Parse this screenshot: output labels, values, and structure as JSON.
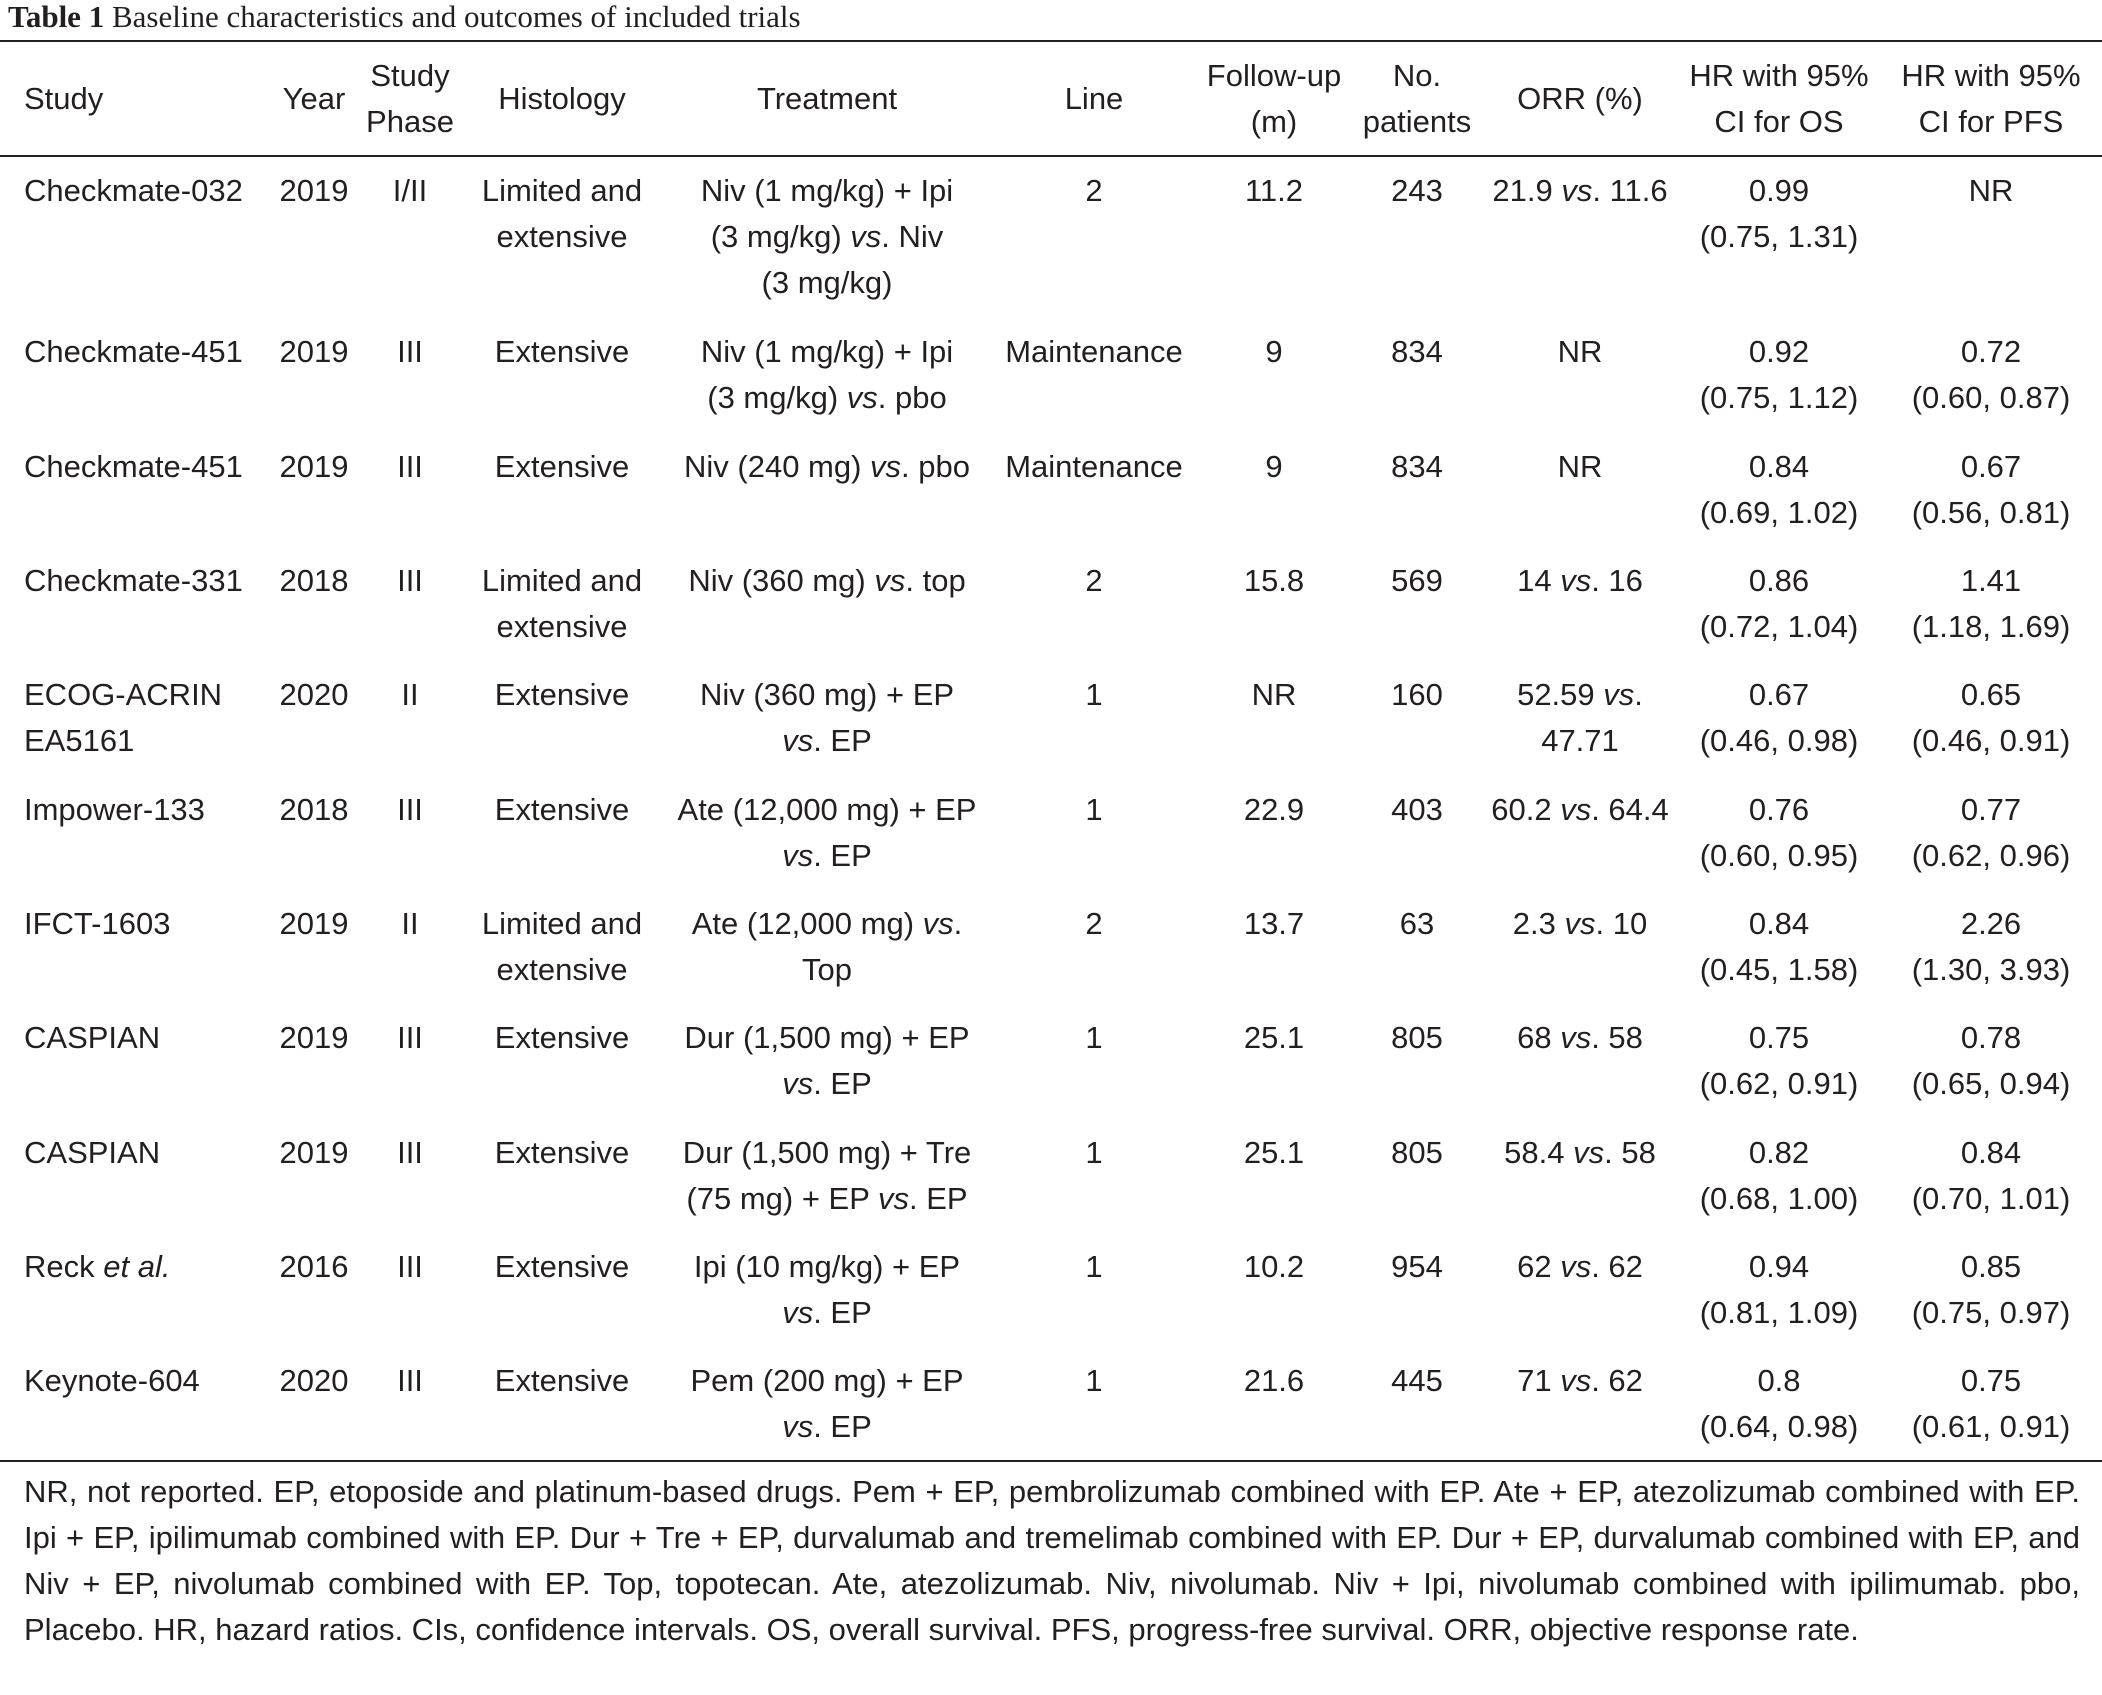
{
  "caption": {
    "number": "Table 1",
    "title": "Baseline characteristics and outcomes of included trials"
  },
  "headers": [
    [
      "Study"
    ],
    [
      "Year"
    ],
    [
      "Study",
      "Phase"
    ],
    [
      "Histology"
    ],
    [
      "Treatment"
    ],
    [
      "Line"
    ],
    [
      "Follow-up",
      "(m)"
    ],
    [
      "No.",
      "patients"
    ],
    [
      "ORR (%)"
    ],
    [
      "HR with 95%",
      "CI for OS"
    ],
    [
      "HR with 95%",
      "CI for PFS"
    ]
  ],
  "rows": [
    [
      [
        [
          "Checkmate-032"
        ]
      ],
      [
        [
          "2019"
        ]
      ],
      [
        [
          "I/II"
        ]
      ],
      [
        [
          "Limited and"
        ],
        [
          "extensive"
        ]
      ],
      [
        [
          "Niv (1 mg/kg) + Ipi"
        ],
        [
          "(3 mg/kg) ",
          {
            "i": "vs"
          },
          ". Niv"
        ],
        [
          "(3 mg/kg)"
        ]
      ],
      [
        [
          "2"
        ]
      ],
      [
        [
          "11.2"
        ]
      ],
      [
        [
          "243"
        ]
      ],
      [
        [
          "21.9 ",
          {
            "i": "vs"
          },
          ". 11.6"
        ]
      ],
      [
        [
          "0.99"
        ],
        [
          "(0.75, 1.31)"
        ]
      ],
      [
        [
          "NR"
        ]
      ]
    ],
    [
      [
        [
          "Checkmate-451"
        ]
      ],
      [
        [
          "2019"
        ]
      ],
      [
        [
          "III"
        ]
      ],
      [
        [
          "Extensive"
        ]
      ],
      [
        [
          "Niv (1 mg/kg) + Ipi"
        ],
        [
          "(3 mg/kg) ",
          {
            "i": "vs"
          },
          ". pbo"
        ]
      ],
      [
        [
          "Maintenance"
        ]
      ],
      [
        [
          "9"
        ]
      ],
      [
        [
          "834"
        ]
      ],
      [
        [
          "NR"
        ]
      ],
      [
        [
          "0.92"
        ],
        [
          "(0.75, 1.12)"
        ]
      ],
      [
        [
          "0.72"
        ],
        [
          "(0.60, 0.87)"
        ]
      ]
    ],
    [
      [
        [
          "Checkmate-451"
        ]
      ],
      [
        [
          "2019"
        ]
      ],
      [
        [
          "III"
        ]
      ],
      [
        [
          "Extensive"
        ]
      ],
      [
        [
          "Niv (240 mg) ",
          {
            "i": "vs"
          },
          ". pbo"
        ]
      ],
      [
        [
          "Maintenance"
        ]
      ],
      [
        [
          "9"
        ]
      ],
      [
        [
          "834"
        ]
      ],
      [
        [
          "NR"
        ]
      ],
      [
        [
          "0.84"
        ],
        [
          "(0.69, 1.02)"
        ]
      ],
      [
        [
          "0.67"
        ],
        [
          "(0.56, 0.81)"
        ]
      ]
    ],
    [
      [
        [
          "Checkmate-331"
        ]
      ],
      [
        [
          "2018"
        ]
      ],
      [
        [
          "III"
        ]
      ],
      [
        [
          "Limited and"
        ],
        [
          "extensive"
        ]
      ],
      [
        [
          "Niv (360 mg) ",
          {
            "i": "vs"
          },
          ". top"
        ]
      ],
      [
        [
          "2"
        ]
      ],
      [
        [
          "15.8"
        ]
      ],
      [
        [
          "569"
        ]
      ],
      [
        [
          "14 ",
          {
            "i": "vs"
          },
          ". 16"
        ]
      ],
      [
        [
          "0.86"
        ],
        [
          "(0.72, 1.04)"
        ]
      ],
      [
        [
          "1.41"
        ],
        [
          "(1.18, 1.69)"
        ]
      ]
    ],
    [
      [
        [
          "ECOG-ACRIN"
        ],
        [
          "EA5161"
        ]
      ],
      [
        [
          "2020"
        ]
      ],
      [
        [
          "II"
        ]
      ],
      [
        [
          "Extensive"
        ]
      ],
      [
        [
          "Niv (360 mg) + EP"
        ],
        [
          {
            "i": "vs"
          },
          ". EP"
        ]
      ],
      [
        [
          "1"
        ]
      ],
      [
        [
          "NR"
        ]
      ],
      [
        [
          "160"
        ]
      ],
      [
        [
          "52.59 ",
          {
            "i": "vs"
          },
          "."
        ],
        [
          "47.71"
        ]
      ],
      [
        [
          "0.67"
        ],
        [
          "(0.46, 0.98)"
        ]
      ],
      [
        [
          "0.65"
        ],
        [
          "(0.46, 0.91)"
        ]
      ]
    ],
    [
      [
        [
          "Impower-133"
        ]
      ],
      [
        [
          "2018"
        ]
      ],
      [
        [
          "III"
        ]
      ],
      [
        [
          "Extensive"
        ]
      ],
      [
        [
          "Ate (12,000 mg) + EP"
        ],
        [
          {
            "i": "vs"
          },
          ". EP"
        ]
      ],
      [
        [
          "1"
        ]
      ],
      [
        [
          "22.9"
        ]
      ],
      [
        [
          "403"
        ]
      ],
      [
        [
          "60.2 ",
          {
            "i": "vs"
          },
          ". 64.4"
        ]
      ],
      [
        [
          "0.76"
        ],
        [
          "(0.60, 0.95)"
        ]
      ],
      [
        [
          "0.77"
        ],
        [
          "(0.62, 0.96)"
        ]
      ]
    ],
    [
      [
        [
          "IFCT-1603"
        ]
      ],
      [
        [
          "2019"
        ]
      ],
      [
        [
          "II"
        ]
      ],
      [
        [
          "Limited and"
        ],
        [
          "extensive"
        ]
      ],
      [
        [
          "Ate (12,000 mg) ",
          {
            "i": "vs"
          },
          "."
        ],
        [
          "Top"
        ]
      ],
      [
        [
          "2"
        ]
      ],
      [
        [
          "13.7"
        ]
      ],
      [
        [
          "63"
        ]
      ],
      [
        [
          "2.3 ",
          {
            "i": "vs"
          },
          ". 10"
        ]
      ],
      [
        [
          "0.84"
        ],
        [
          "(0.45, 1.58)"
        ]
      ],
      [
        [
          "2.26"
        ],
        [
          "(1.30, 3.93)"
        ]
      ]
    ],
    [
      [
        [
          "CASPIAN"
        ]
      ],
      [
        [
          "2019"
        ]
      ],
      [
        [
          "III"
        ]
      ],
      [
        [
          "Extensive"
        ]
      ],
      [
        [
          "Dur (1,500 mg) + EP"
        ],
        [
          {
            "i": "vs"
          },
          ". EP"
        ]
      ],
      [
        [
          "1"
        ]
      ],
      [
        [
          "25.1"
        ]
      ],
      [
        [
          "805"
        ]
      ],
      [
        [
          "68 ",
          {
            "i": "vs"
          },
          ". 58"
        ]
      ],
      [
        [
          "0.75"
        ],
        [
          "(0.62, 0.91)"
        ]
      ],
      [
        [
          "0.78"
        ],
        [
          "(0.65, 0.94)"
        ]
      ]
    ],
    [
      [
        [
          "CASPIAN"
        ]
      ],
      [
        [
          "2019"
        ]
      ],
      [
        [
          "III"
        ]
      ],
      [
        [
          "Extensive"
        ]
      ],
      [
        [
          "Dur (1,500 mg) + Tre"
        ],
        [
          "(75 mg) + EP ",
          {
            "i": "vs"
          },
          ". EP"
        ]
      ],
      [
        [
          "1"
        ]
      ],
      [
        [
          "25.1"
        ]
      ],
      [
        [
          "805"
        ]
      ],
      [
        [
          "58.4 ",
          {
            "i": "vs"
          },
          ". 58"
        ]
      ],
      [
        [
          "0.82"
        ],
        [
          "(0.68, 1.00)"
        ]
      ],
      [
        [
          "0.84"
        ],
        [
          "(0.70, 1.01)"
        ]
      ]
    ],
    [
      [
        [
          "Reck ",
          {
            "i": "et al."
          }
        ]
      ],
      [
        [
          "2016"
        ]
      ],
      [
        [
          "III"
        ]
      ],
      [
        [
          "Extensive"
        ]
      ],
      [
        [
          "Ipi (10 mg/kg) + EP"
        ],
        [
          {
            "i": "vs"
          },
          ". EP"
        ]
      ],
      [
        [
          "1"
        ]
      ],
      [
        [
          "10.2"
        ]
      ],
      [
        [
          "954"
        ]
      ],
      [
        [
          "62 ",
          {
            "i": "vs"
          },
          ". 62"
        ]
      ],
      [
        [
          "0.94"
        ],
        [
          "(0.81, 1.09)"
        ]
      ],
      [
        [
          "0.85"
        ],
        [
          "(0.75, 0.97)"
        ]
      ]
    ],
    [
      [
        [
          "Keynote-604"
        ]
      ],
      [
        [
          "2020"
        ]
      ],
      [
        [
          "III"
        ]
      ],
      [
        [
          "Extensive"
        ]
      ],
      [
        [
          "Pem (200 mg) + EP"
        ],
        [
          {
            "i": "vs"
          },
          ". EP"
        ]
      ],
      [
        [
          "1"
        ]
      ],
      [
        [
          "21.6"
        ]
      ],
      [
        [
          "445"
        ]
      ],
      [
        [
          "71 ",
          {
            "i": "vs"
          },
          ". 62"
        ]
      ],
      [
        [
          "0.8"
        ],
        [
          "(0.64, 0.98)"
        ]
      ],
      [
        [
          "0.75"
        ],
        [
          "(0.61, 0.91)"
        ]
      ]
    ]
  ],
  "footnote": "NR, not reported. EP, etoposide and platinum-based drugs. Pem + EP, pembrolizumab combined with EP. Ate + EP, atezolizumab combined with EP. Ipi + EP, ipilimumab combined with EP. Dur + Tre + EP, durvalumab and tremelimab combined with EP. Dur + EP, durvalumab combined with EP, and Niv + EP, nivolumab combined with EP. Top, topotecan. Ate, atezolizumab. Niv, nivolumab. Niv + Ipi, nivolumab combined with ipilimumab. pbo, Placebo. HR, hazard ratios. CIs, confidence intervals. OS, overall survival. PFS, progress-free survival. ORR, objective response rate."
}
